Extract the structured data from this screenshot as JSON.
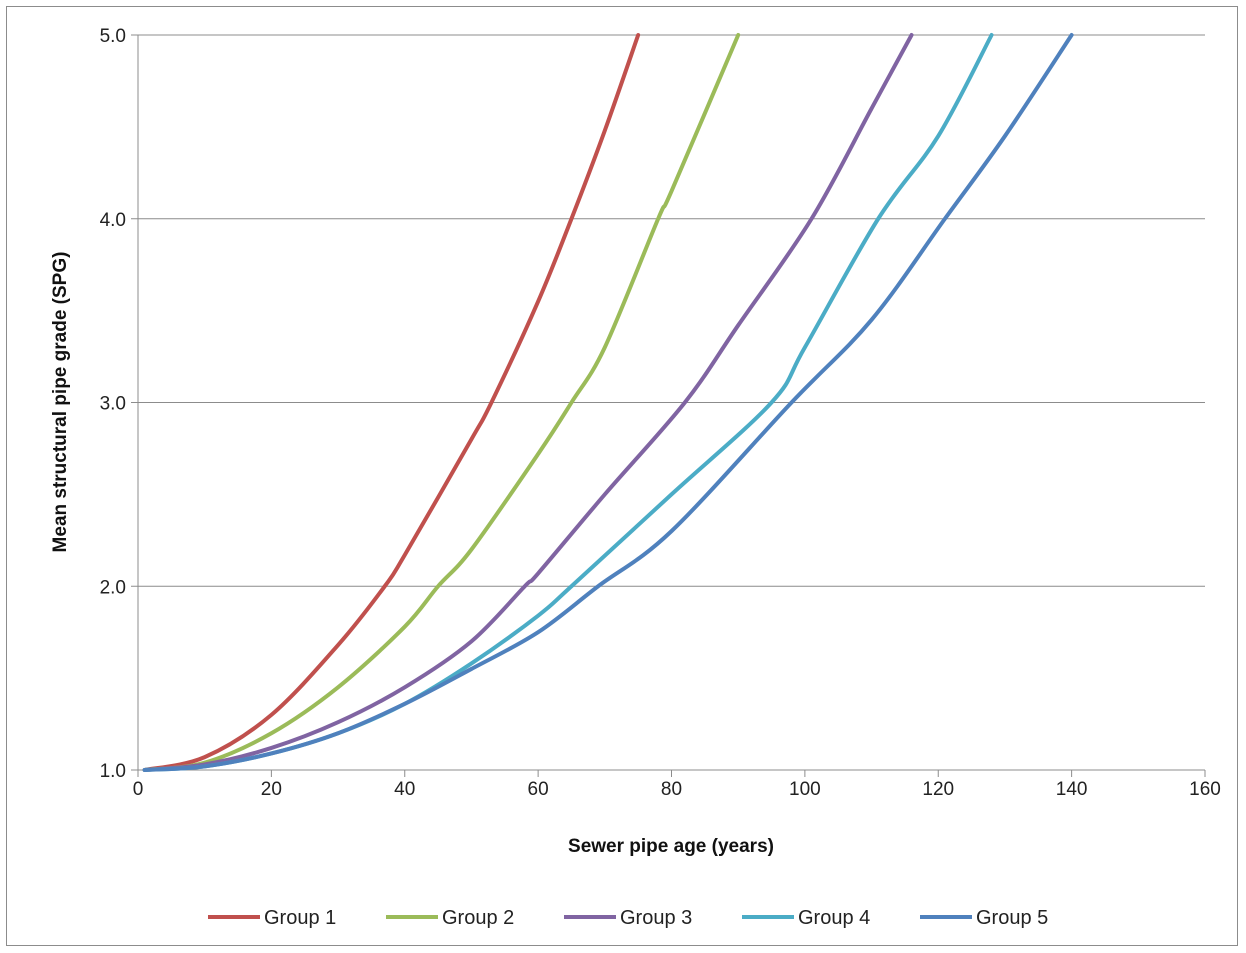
{
  "chart_data": {
    "type": "line",
    "title": "",
    "xlabel": "Sewer pipe age (years)",
    "ylabel": "Mean structural pipe grade (SPG)",
    "xlim": [
      0,
      160
    ],
    "ylim": [
      1.0,
      5.0
    ],
    "x_ticks": [
      "0",
      "20",
      "40",
      "60",
      "80",
      "100",
      "120",
      "140",
      "160"
    ],
    "y_ticks": [
      "1.0",
      "2.0",
      "3.0",
      "4.0",
      "5.0"
    ],
    "grid": "horizontal",
    "legend_position": "bottom",
    "series": [
      {
        "name": "Group 1",
        "color": "#c0504d",
        "x": [
          1,
          10,
          20,
          30,
          37,
          40,
          50,
          53,
          60,
          65,
          70,
          75
        ],
        "y": [
          1.0,
          1.07,
          1.3,
          1.68,
          2.0,
          2.17,
          2.8,
          3.0,
          3.55,
          4.0,
          4.48,
          5.0
        ]
      },
      {
        "name": "Group 2",
        "color": "#9bbb59",
        "x": [
          1,
          10,
          20,
          30,
          40,
          45,
          50,
          60,
          65,
          70,
          78,
          80,
          90
        ],
        "y": [
          1.0,
          1.04,
          1.2,
          1.45,
          1.78,
          2.0,
          2.2,
          2.72,
          3.0,
          3.3,
          4.0,
          4.15,
          5.0
        ]
      },
      {
        "name": "Group 3",
        "color": "#8064a2",
        "x": [
          1,
          10,
          20,
          30,
          40,
          50,
          58,
          60,
          70,
          82,
          90,
          101,
          110,
          116
        ],
        "y": [
          1.0,
          1.03,
          1.12,
          1.26,
          1.45,
          1.7,
          2.0,
          2.07,
          2.5,
          3.0,
          3.42,
          4.0,
          4.6,
          5.0
        ]
      },
      {
        "name": "Group 4",
        "color": "#4bacc6",
        "x": [
          1,
          10,
          20,
          30,
          40,
          50,
          60,
          65,
          80,
          95,
          100,
          111,
          120,
          128
        ],
        "y": [
          1.0,
          1.02,
          1.09,
          1.2,
          1.36,
          1.58,
          1.84,
          2.0,
          2.5,
          3.0,
          3.3,
          4.0,
          4.45,
          5.0
        ]
      },
      {
        "name": "Group 5",
        "color": "#4f81bd",
        "x": [
          1,
          10,
          20,
          30,
          40,
          50,
          60,
          69,
          80,
          98,
          110,
          121,
          130,
          140
        ],
        "y": [
          1.0,
          1.02,
          1.09,
          1.2,
          1.36,
          1.55,
          1.75,
          2.0,
          2.3,
          3.0,
          3.45,
          4.0,
          4.45,
          5.0
        ]
      }
    ]
  }
}
